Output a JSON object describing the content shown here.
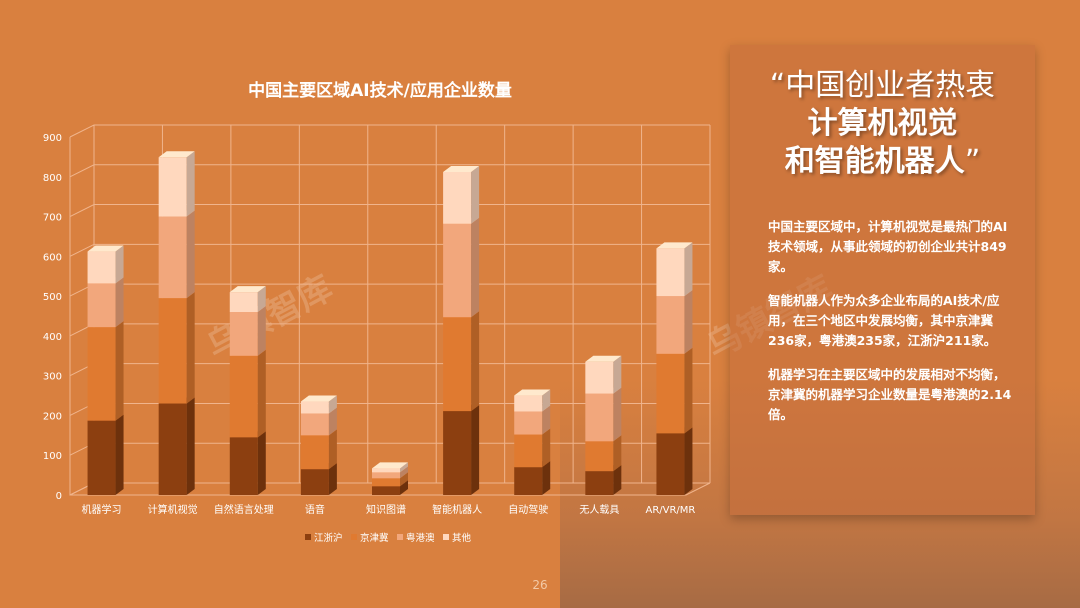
{
  "chart_data": {
    "type": "bar",
    "stacked": true,
    "title": "中国主要区域AI技术/应用企业数量",
    "categories": [
      "机器学习",
      "计算机视觉",
      "自然语言处理",
      "语音",
      "知识图谱",
      "智能机器人",
      "自动驾驶",
      "无人载具",
      "AR/VR/MR"
    ],
    "series": [
      {
        "name": "江浙沪",
        "color": "#8C3F10",
        "values": [
          187,
          230,
          145,
          65,
          22,
          211,
          70,
          60,
          155
        ]
      },
      {
        "name": "京津冀",
        "color": "#E07A30",
        "values": [
          235,
          265,
          205,
          85,
          20,
          236,
          82,
          75,
          200
        ]
      },
      {
        "name": "粤港澳",
        "color": "#F2A77C",
        "values": [
          110,
          205,
          110,
          55,
          15,
          235,
          58,
          120,
          145
        ]
      },
      {
        "name": "其他",
        "color": "#FFD8BE",
        "values": [
          80,
          149,
          50,
          30,
          10,
          130,
          40,
          80,
          120
        ]
      }
    ],
    "ylim": [
      0,
      900
    ],
    "yticks": [
      0,
      100,
      200,
      300,
      400,
      500,
      600,
      700,
      800,
      900
    ],
    "grid": true,
    "legend": "bottom"
  },
  "panel": {
    "quote_open": "“",
    "quote_close": "”",
    "line1": "中国创业者热衷",
    "line2": "计算机视觉",
    "line3": "和智能机器人",
    "paragraphs": [
      "中国主要区域中，计算机视觉是最热门的AI技术领域，从事此领域的初创企业共计849家。",
      "智能机器人作为众多企业布局的AI技术/应用，在三个地区中发展均衡，其中京津冀236家，粤港澳235家，江浙沪211家。",
      "机器学习在主要区域中的发展相对不均衡，京津冀的机器学习企业数量是粤港澳的2.14倍。"
    ]
  },
  "watermark": "乌镇智库",
  "page_number": "26",
  "colors": {
    "background": "#D9803F",
    "grid": "#F0B48C"
  }
}
